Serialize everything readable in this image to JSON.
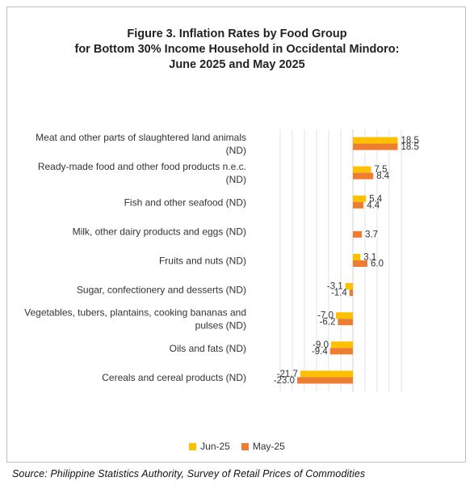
{
  "title_lines": [
    "Figure 3. Inflation Rates by Food Group",
    "for Bottom 30% Income Household in  Occidental Mindoro:",
    "June 2025 and May 2025"
  ],
  "source": "Source: Philippine Statistics Authority, Survey of Retail Prices of Commodities",
  "chart_data": {
    "type": "bar",
    "orientation": "horizontal",
    "title": "Figure 3. Inflation Rates by Food Group for Bottom 30% Income Household in  Occidental Mindoro: June 2025 and May 2025",
    "categories": [
      "Meat and other parts of slaughtered land animals (ND)",
      "Ready-made food and other food products n.e.c. (ND)",
      "Fish and other seafood (ND)",
      "Milk, other dairy products and eggs (ND)",
      "Fruits and nuts (ND)",
      "Sugar, confectionery and desserts (ND)",
      "Vegetables, tubers, plantains, cooking bananas and pulses (ND)",
      "Oils and fats (ND)",
      "Cereals and cereal products (ND)"
    ],
    "category_lines": [
      [
        "Meat and other parts of slaughtered land animals",
        "(ND)"
      ],
      [
        "Ready-made food and other food products n.e.c.",
        "(ND)"
      ],
      [
        "Fish and other seafood (ND)"
      ],
      [
        "Milk, other dairy products and eggs (ND)"
      ],
      [
        "Fruits and nuts (ND)"
      ],
      [
        "Sugar, confectionery and desserts (ND)"
      ],
      [
        "Vegetables, tubers, plantains, cooking bananas and",
        "pulses (ND)"
      ],
      [
        "Oils and fats (ND)"
      ],
      [
        "Cereals and cereal products (ND)"
      ]
    ],
    "series": [
      {
        "name": "Jun-25",
        "color": "#ffc000",
        "values": [
          18.5,
          7.5,
          5.4,
          null,
          3.1,
          -3.1,
          -7.0,
          -9.0,
          -21.7
        ],
        "labels": [
          "18.5",
          "7.5",
          "5.4",
          "",
          "3.1",
          "-3.1",
          "-7.0",
          "-9.0",
          "-21.7"
        ]
      },
      {
        "name": "May-25",
        "color": "#ed7d31",
        "values": [
          18.5,
          8.4,
          4.4,
          3.7,
          6.0,
          -1.4,
          -6.2,
          -9.4,
          -23.0
        ],
        "labels": [
          "18.5",
          "8.4",
          "4.4",
          "3.7",
          "6.0",
          "-1.4",
          "-6.2",
          "-9.4",
          "-23.0"
        ]
      }
    ],
    "xlim": [
      -30,
      20
    ],
    "grid": true,
    "legend_position": "bottom"
  }
}
